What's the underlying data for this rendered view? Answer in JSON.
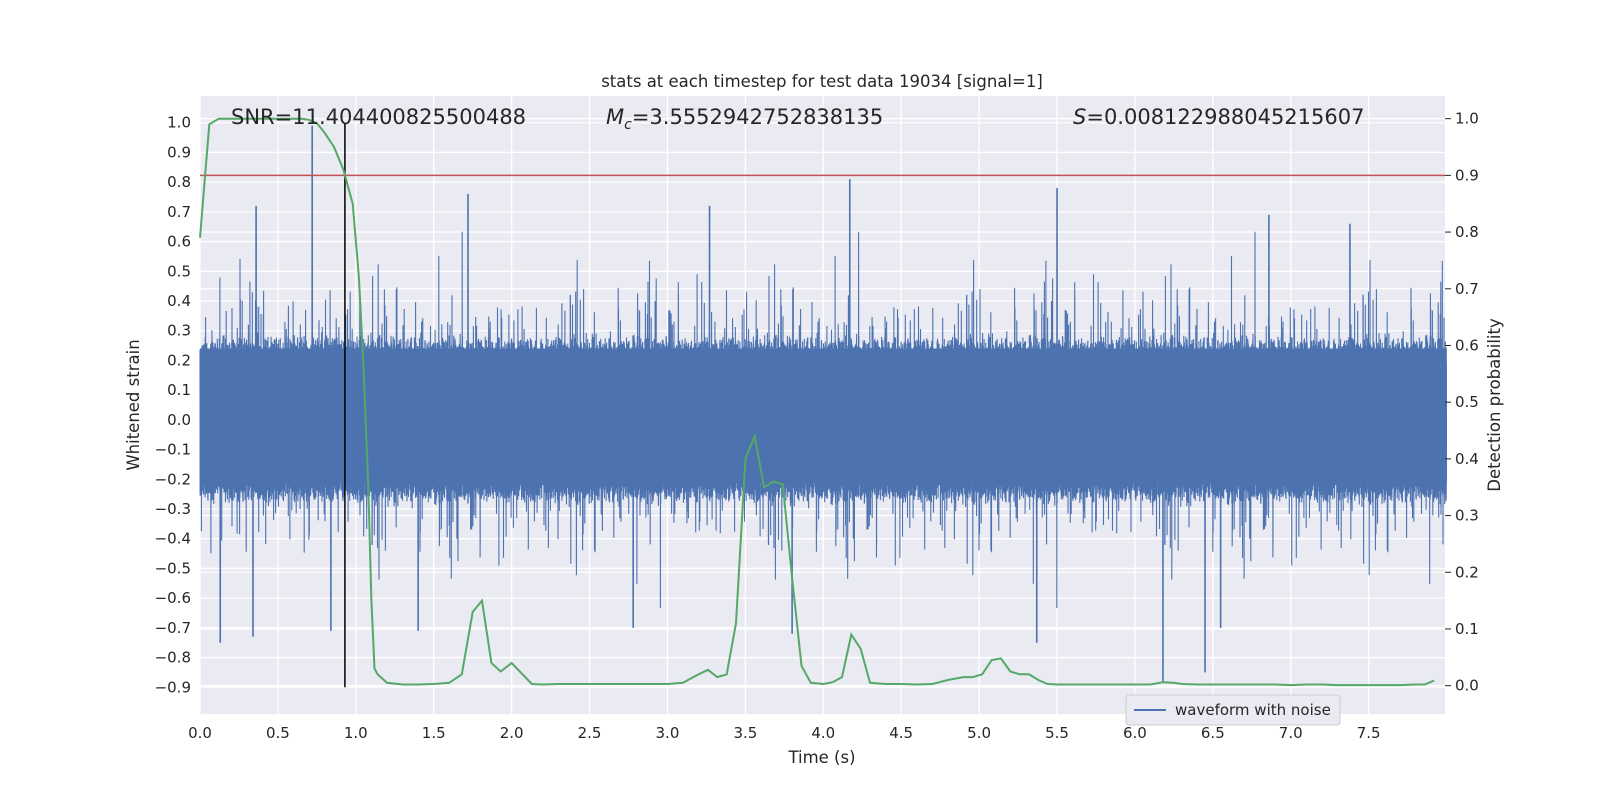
{
  "chart_data": {
    "type": "line",
    "title": "stats at each timestep for test data 19034 [signal=1]",
    "xlabel": "Time (s)",
    "ylabel_left": "Whitened strain",
    "ylabel_right": "Detection probability",
    "xlim": [
      0.0,
      7.99
    ],
    "ylim_left": [
      -0.99,
      1.09
    ],
    "ylim_right": [
      -0.05,
      1.04
    ],
    "x_ticks": [
      "0.0",
      "0.5",
      "1.0",
      "1.5",
      "2.0",
      "2.5",
      "3.0",
      "3.5",
      "4.0",
      "4.5",
      "5.0",
      "5.5",
      "6.0",
      "6.5",
      "7.0",
      "7.5"
    ],
    "y_ticks_left": [
      "−0.9",
      "−0.8",
      "−0.7",
      "−0.6",
      "−0.5",
      "−0.4",
      "−0.3",
      "−0.2",
      "−0.1",
      "0.0",
      "0.1",
      "0.2",
      "0.3",
      "0.4",
      "0.5",
      "0.6",
      "0.7",
      "0.8",
      "0.9",
      "1.0"
    ],
    "y_ticks_right": [
      "0.0",
      "0.1",
      "0.2",
      "0.3",
      "0.4",
      "0.5",
      "0.6",
      "0.7",
      "0.8",
      "0.9",
      "1.0"
    ],
    "grid": true,
    "legend": {
      "position": "bottom-right",
      "entries": [
        "waveform with noise"
      ]
    },
    "annotations": {
      "snr": "SNR=11.404400825500488",
      "mc_symbol": "M",
      "mc_sub": "c",
      "mc_value": "=3.5552942752838135",
      "s_symbol": "S",
      "s_value": "=0.008122988045215607"
    },
    "threshold": {
      "axis": "right",
      "value": 0.9,
      "color": "#c44e52"
    },
    "marker_line": {
      "x": 0.93,
      "color": "#000000"
    },
    "series": [
      {
        "name": "waveform with noise",
        "axis": "left",
        "color": "#4c72b0",
        "sample_rate_hz": 2048,
        "duration_s": 8.0,
        "envelope_pos": 0.24,
        "envelope_neg": -0.19,
        "peaks": [
          [
            0.72,
            0.99
          ],
          [
            4.17,
            0.81
          ],
          [
            0.36,
            0.72
          ],
          [
            1.72,
            0.76
          ],
          [
            3.27,
            0.72
          ],
          [
            5.5,
            0.78
          ],
          [
            6.86,
            0.69
          ],
          [
            7.38,
            0.66
          ],
          [
            6.18,
            -0.88
          ],
          [
            6.45,
            -0.85
          ],
          [
            0.13,
            -0.75
          ],
          [
            0.34,
            -0.73
          ],
          [
            1.4,
            -0.71
          ],
          [
            2.78,
            -0.7
          ],
          [
            5.37,
            -0.75
          ],
          [
            3.8,
            -0.72
          ],
          [
            0.84,
            -0.71
          ],
          [
            6.55,
            -0.7
          ]
        ]
      },
      {
        "axis": "right",
        "color": "#55a868",
        "x": [
          0.0,
          0.06,
          0.12,
          0.2,
          0.3,
          0.4,
          0.5,
          0.6,
          0.65,
          0.7,
          0.75,
          0.8,
          0.86,
          0.92,
          0.98,
          1.02,
          1.05,
          1.08,
          1.1,
          1.12,
          1.14,
          1.2,
          1.3,
          1.4,
          1.5,
          1.6,
          1.68,
          1.75,
          1.81,
          1.87,
          1.93,
          2.0,
          2.07,
          2.13,
          2.2,
          2.3,
          2.4,
          2.5,
          2.6,
          2.7,
          2.8,
          2.9,
          3.0,
          3.1,
          3.2,
          3.26,
          3.32,
          3.38,
          3.44,
          3.5,
          3.56,
          3.62,
          3.68,
          3.74,
          3.8,
          3.86,
          3.92,
          4.0,
          4.06,
          4.12,
          4.18,
          4.24,
          4.3,
          4.4,
          4.5,
          4.6,
          4.7,
          4.8,
          4.9,
          4.96,
          5.02,
          5.08,
          5.14,
          5.2,
          5.26,
          5.32,
          5.38,
          5.44,
          5.5,
          5.6,
          5.7,
          5.8,
          5.9,
          6.0,
          6.1,
          6.18,
          6.25,
          6.3,
          6.4,
          6.5,
          6.6,
          6.7,
          6.8,
          6.9,
          7.0,
          7.1,
          7.2,
          7.3,
          7.4,
          7.5,
          7.6,
          7.7,
          7.8,
          7.86,
          7.92
        ],
        "y": [
          0.79,
          0.99,
          1.0,
          1.0,
          1.0,
          1.0,
          1.0,
          1.0,
          1.0,
          0.998,
          0.992,
          0.975,
          0.95,
          0.91,
          0.85,
          0.72,
          0.56,
          0.35,
          0.15,
          0.03,
          0.02,
          0.005,
          0.002,
          0.002,
          0.003,
          0.005,
          0.02,
          0.13,
          0.15,
          0.04,
          0.025,
          0.04,
          0.02,
          0.003,
          0.002,
          0.003,
          0.003,
          0.003,
          0.003,
          0.003,
          0.003,
          0.003,
          0.003,
          0.005,
          0.02,
          0.028,
          0.015,
          0.02,
          0.11,
          0.4,
          0.44,
          0.35,
          0.36,
          0.355,
          0.19,
          0.035,
          0.005,
          0.003,
          0.006,
          0.015,
          0.09,
          0.065,
          0.005,
          0.003,
          0.003,
          0.002,
          0.003,
          0.01,
          0.015,
          0.015,
          0.02,
          0.045,
          0.048,
          0.025,
          0.02,
          0.02,
          0.01,
          0.003,
          0.002,
          0.002,
          0.002,
          0.002,
          0.002,
          0.002,
          0.002,
          0.006,
          0.005,
          0.003,
          0.002,
          0.002,
          0.002,
          0.002,
          0.002,
          0.002,
          0.001,
          0.002,
          0.002,
          0.001,
          0.001,
          0.001,
          0.001,
          0.001,
          0.002,
          0.002,
          0.009
        ]
      }
    ]
  }
}
